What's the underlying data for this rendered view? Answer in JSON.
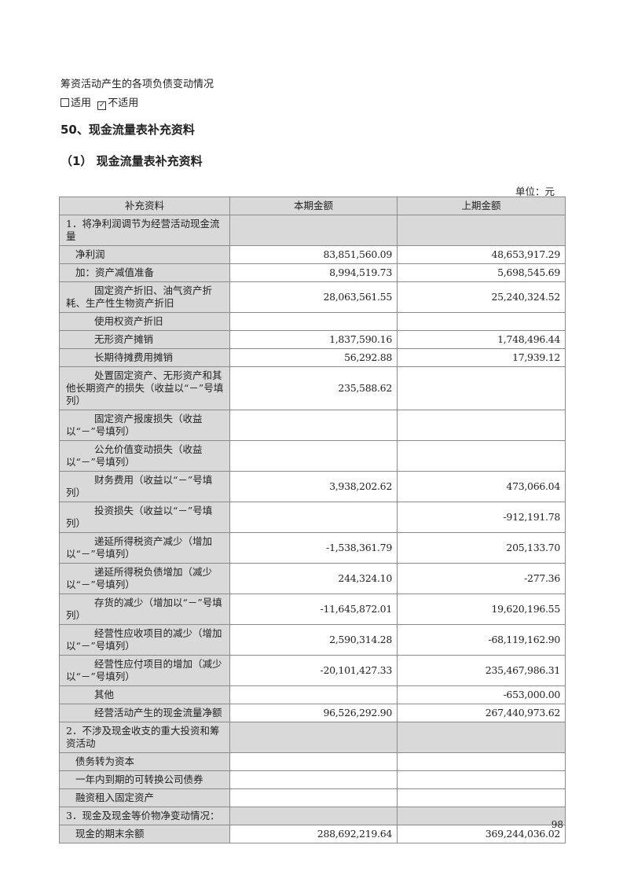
{
  "intro": "筹资活动产生的各项负债变动情况",
  "applicability": {
    "option_applicable": "适用",
    "option_not_applicable": "不适用",
    "selected": "不适用"
  },
  "section_title": "50、现金流量表补充资料",
  "subsection_title": "（1） 现金流量表补充资料",
  "unit": "单位：元",
  "table": {
    "headers": [
      "补充资料",
      "本期金额",
      "上期金额"
    ],
    "rows": [
      {
        "label": "1．将净利润调节为经营活动现金流量",
        "current": "",
        "prior": ""
      },
      {
        "label": "净利润",
        "current": "83,851,560.09",
        "prior": "48,653,917.29"
      },
      {
        "label": "加：资产减值准备",
        "current": "8,994,519.73",
        "prior": "5,698,545.69"
      },
      {
        "label": "固定资产折旧、油气资产折耗、生产性生物资产折旧",
        "current": "28,063,561.55",
        "prior": "25,240,324.52"
      },
      {
        "label": "使用权资产折旧",
        "current": "",
        "prior": ""
      },
      {
        "label": "无形资产摊销",
        "current": "1,837,590.16",
        "prior": "1,748,496.44"
      },
      {
        "label": "长期待摊费用摊销",
        "current": "56,292.88",
        "prior": "17,939.12"
      },
      {
        "label": "处置固定资产、无形资产和其他长期资产的损失（收益以“－”号填列）",
        "current": "235,588.62",
        "prior": ""
      },
      {
        "label": "固定资产报废损失（收益以“－”号填列）",
        "current": "",
        "prior": ""
      },
      {
        "label": "公允价值变动损失（收益以“－”号填列）",
        "current": "",
        "prior": ""
      },
      {
        "label": "财务费用（收益以“－”号填列）",
        "current": "3,938,202.62",
        "prior": "473,066.04"
      },
      {
        "label": "投资损失（收益以“－”号填列）",
        "current": "",
        "prior": "-912,191.78"
      },
      {
        "label": "递延所得税资产减少（增加以“－”号填列）",
        "current": "-1,538,361.79",
        "prior": "205,133.70"
      },
      {
        "label": "递延所得税负债增加（减少以“－”号填列）",
        "current": "244,324.10",
        "prior": "-277.36"
      },
      {
        "label": "存货的减少（增加以“－”号填列）",
        "current": "-11,645,872.01",
        "prior": "19,620,196.55"
      },
      {
        "label": "经营性应收项目的减少（增加以“－”号填列）",
        "current": "2,590,314.28",
        "prior": "-68,119,162.90"
      },
      {
        "label": "经营性应付项目的增加（减少以“－”号填列）",
        "current": "-20,101,427.33",
        "prior": "235,467,986.31"
      },
      {
        "label": "其他",
        "current": "",
        "prior": "-653,000.00"
      },
      {
        "label": "经营活动产生的现金流量净额",
        "current": "96,526,292.90",
        "prior": "267,440,973.62"
      },
      {
        "label": "2．不涉及现金收支的重大投资和筹资活动",
        "current": "",
        "prior": ""
      },
      {
        "label": "债务转为资本",
        "current": "",
        "prior": ""
      },
      {
        "label": "一年内到期的可转换公司债券",
        "current": "",
        "prior": ""
      },
      {
        "label": "融资租入固定资产",
        "current": "",
        "prior": ""
      },
      {
        "label": "3．现金及现金等价物净变动情况：",
        "current": "",
        "prior": ""
      },
      {
        "label": "现金的期末余额",
        "current": "288,692,219.64",
        "prior": "369,244,036.02"
      }
    ]
  },
  "page_number": "98"
}
